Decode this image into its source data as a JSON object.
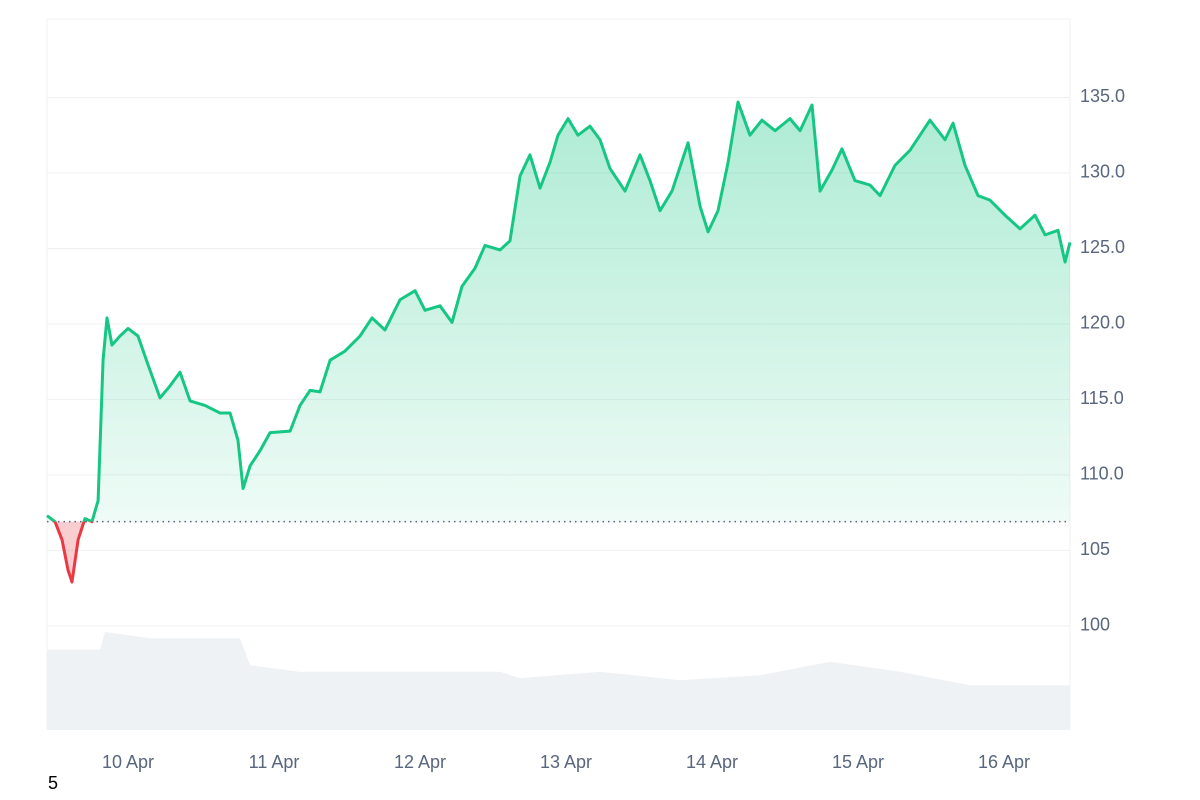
{
  "chart_data": {
    "type": "line",
    "x": [
      9.445,
      9.5,
      9.548,
      9.589,
      9.616,
      9.658,
      9.705,
      9.753,
      9.795,
      9.829,
      9.856,
      9.89,
      9.945,
      10.0,
      10.068,
      10.137,
      10.219,
      10.288,
      10.356,
      10.425,
      10.527,
      10.63,
      10.699,
      10.753,
      10.788,
      10.836,
      10.904,
      10.973,
      11.11,
      11.178,
      11.247,
      11.315,
      11.384,
      11.486,
      11.589,
      11.671,
      11.76,
      11.863,
      11.966,
      12.034,
      12.137,
      12.219,
      12.288,
      12.377,
      12.445,
      12.548,
      12.616,
      12.685,
      12.753,
      12.822,
      12.89,
      12.945,
      13.014,
      13.082,
      13.164,
      13.233,
      13.301,
      13.404,
      13.507,
      13.575,
      13.644,
      13.726,
      13.836,
      13.918,
      13.973,
      14.041,
      14.11,
      14.178,
      14.26,
      14.342,
      14.432,
      14.534,
      14.603,
      14.685,
      14.74,
      14.822,
      14.89,
      14.979,
      15.082,
      15.151,
      15.253,
      15.356,
      15.493,
      15.596,
      15.651,
      15.733,
      15.822,
      15.904,
      16.007,
      16.11,
      16.212,
      16.281,
      16.37,
      16.418,
      16.452
    ],
    "series": [
      {
        "color": "#16c784",
        "values": [
          107.3,
          106.9,
          105.7,
          103.7,
          102.9,
          105.7,
          107.1,
          106.9,
          108.3,
          117.6,
          120.4,
          118.6,
          119.2,
          119.7,
          119.2,
          117.3,
          115.1,
          115.9,
          116.8,
          114.9,
          114.6,
          114.1,
          114.1,
          112.3,
          109.1,
          110.6,
          111.6,
          112.8,
          112.9,
          114.6,
          115.6,
          115.5,
          117.6,
          118.2,
          119.2,
          120.4,
          119.6,
          121.6,
          122.2,
          120.9,
          121.2,
          120.1,
          122.5,
          123.7,
          125.2,
          124.9,
          125.5,
          129.8,
          131.2,
          129.0,
          130.7,
          132.5,
          133.6,
          132.5,
          133.1,
          132.2,
          130.3,
          128.8,
          131.2,
          129.5,
          127.5,
          128.8,
          132.0,
          127.8,
          126.1,
          127.5,
          130.7,
          134.7,
          132.5,
          133.5,
          132.8,
          133.6,
          132.8,
          134.5,
          128.8,
          130.2,
          131.6,
          129.5,
          129.2,
          128.5,
          130.5,
          131.5,
          133.5,
          132.2,
          133.3,
          130.5,
          128.5,
          128.2,
          127.2,
          126.3,
          127.2,
          125.9,
          126.2,
          124.1,
          125.4
        ]
      },
      {
        "color": "#eff2f5",
        "axis": "y2",
        "x": [
          9.445,
          9.808,
          9.842,
          10.151,
          10.767,
          10.836,
          11.178,
          12.548,
          12.685,
          13.233,
          13.781,
          14.329,
          14.808,
          15.288,
          15.767,
          16.452
        ],
        "values": [
          11.3,
          11.3,
          13.8,
          12.9,
          12.9,
          9.1,
          8.2,
          8.2,
          7.3,
          8.2,
          7.0,
          7.7,
          9.6,
          8.2,
          6.3,
          6.3
        ]
      }
    ],
    "down_color": "#ea3943",
    "baseline": 106.9,
    "xlim": [
      9.445,
      16.452
    ],
    "xticks": [
      {
        "value": 10,
        "label": "10 Apr"
      },
      {
        "value": 11,
        "label": "11 Apr"
      },
      {
        "value": 12,
        "label": "12 Apr"
      },
      {
        "value": 13,
        "label": "13 Apr"
      },
      {
        "value": 14,
        "label": "14 Apr"
      },
      {
        "value": 15,
        "label": "15 Apr"
      },
      {
        "value": 16,
        "label": "16 Apr"
      }
    ],
    "ylim": [
      93.1,
      140.2
    ],
    "yticks": [
      100,
      105,
      {
        "value": 110,
        "label": "110.0"
      },
      {
        "value": 115,
        "label": "115.0"
      },
      {
        "value": 120,
        "label": "120.0"
      },
      {
        "value": 125,
        "label": "125.0"
      },
      {
        "value": 130,
        "label": "130.0"
      },
      {
        "value": 135,
        "label": "135.0"
      }
    ],
    "y2lim": [
      0,
      100
    ],
    "grid": true
  },
  "footer_text": "5"
}
